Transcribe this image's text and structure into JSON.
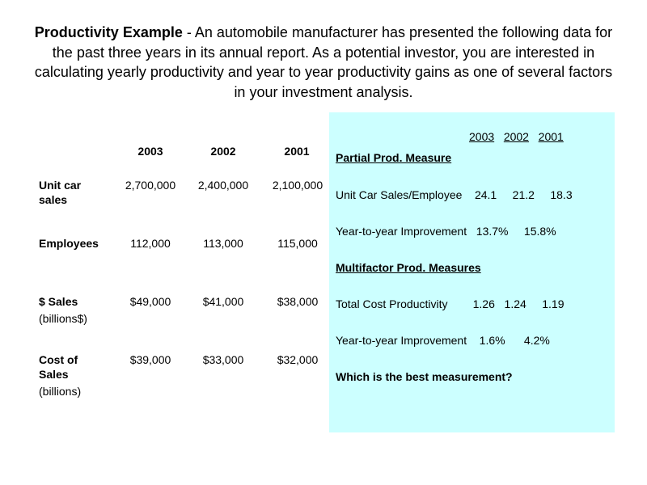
{
  "intro": {
    "title": "Productivity Example",
    "text": " - An automobile manufacturer has presented the following data for the past three years in its annual report. As a potential investor, you are interested in calculating yearly productivity and year to year productivity gains as one of several factors in your investment analysis."
  },
  "table": {
    "years": [
      "2003",
      "2002",
      "2001"
    ],
    "rows": [
      {
        "label": "Unit car sales",
        "sublabel": "",
        "values": [
          "2,700,000",
          "2,400,000",
          "2,100,000"
        ]
      },
      {
        "label": "Employees",
        "sublabel": "",
        "values": [
          "112,000",
          "113,000",
          "115,000"
        ]
      },
      {
        "label": "$ Sales",
        "sublabel": "(billions$)",
        "values": [
          "$49,000",
          "$41,000",
          "$38,000"
        ]
      },
      {
        "label": "Cost of Sales",
        "sublabel": "(billions)",
        "values": [
          "$39,000",
          "$33,000",
          "$32,000"
        ]
      }
    ]
  },
  "panel": {
    "years": [
      "2003",
      "2002",
      "2001"
    ],
    "partial_heading": "Partial Prod. Measure",
    "unit_sales_line": "Unit Car Sales/Employee    24.1     21.2     18.3",
    "improvement_line_1": "Year-to-year Improvement   13.7%     15.8%",
    "multifactor_heading": "Multifactor Prod. Measures",
    "total_cost_line": "Total Cost Productivity        1.26   1.24     1.19",
    "improvement_line_2": "Year-to-year Improvement    1.6%      4.2%",
    "question": "Which is the best measurement?"
  }
}
